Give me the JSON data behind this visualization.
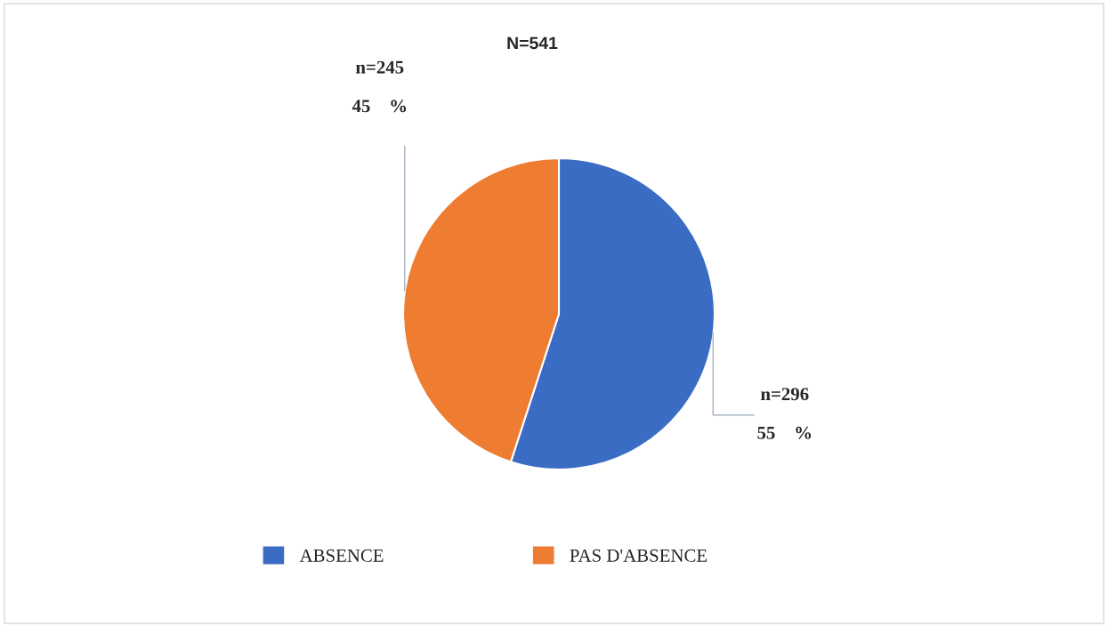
{
  "chart_data": {
    "type": "pie",
    "title": "N=541",
    "categories": [
      "ABSENCE",
      "PAS D'ABSENCE"
    ],
    "values": [
      55,
      45
    ],
    "colors": [
      "#3b6cc4",
      "#ee7d31"
    ],
    "value_labels": [
      "n=296\n\n55    %",
      "n=245\n\n45    %"
    ],
    "legend": "bottom"
  }
}
